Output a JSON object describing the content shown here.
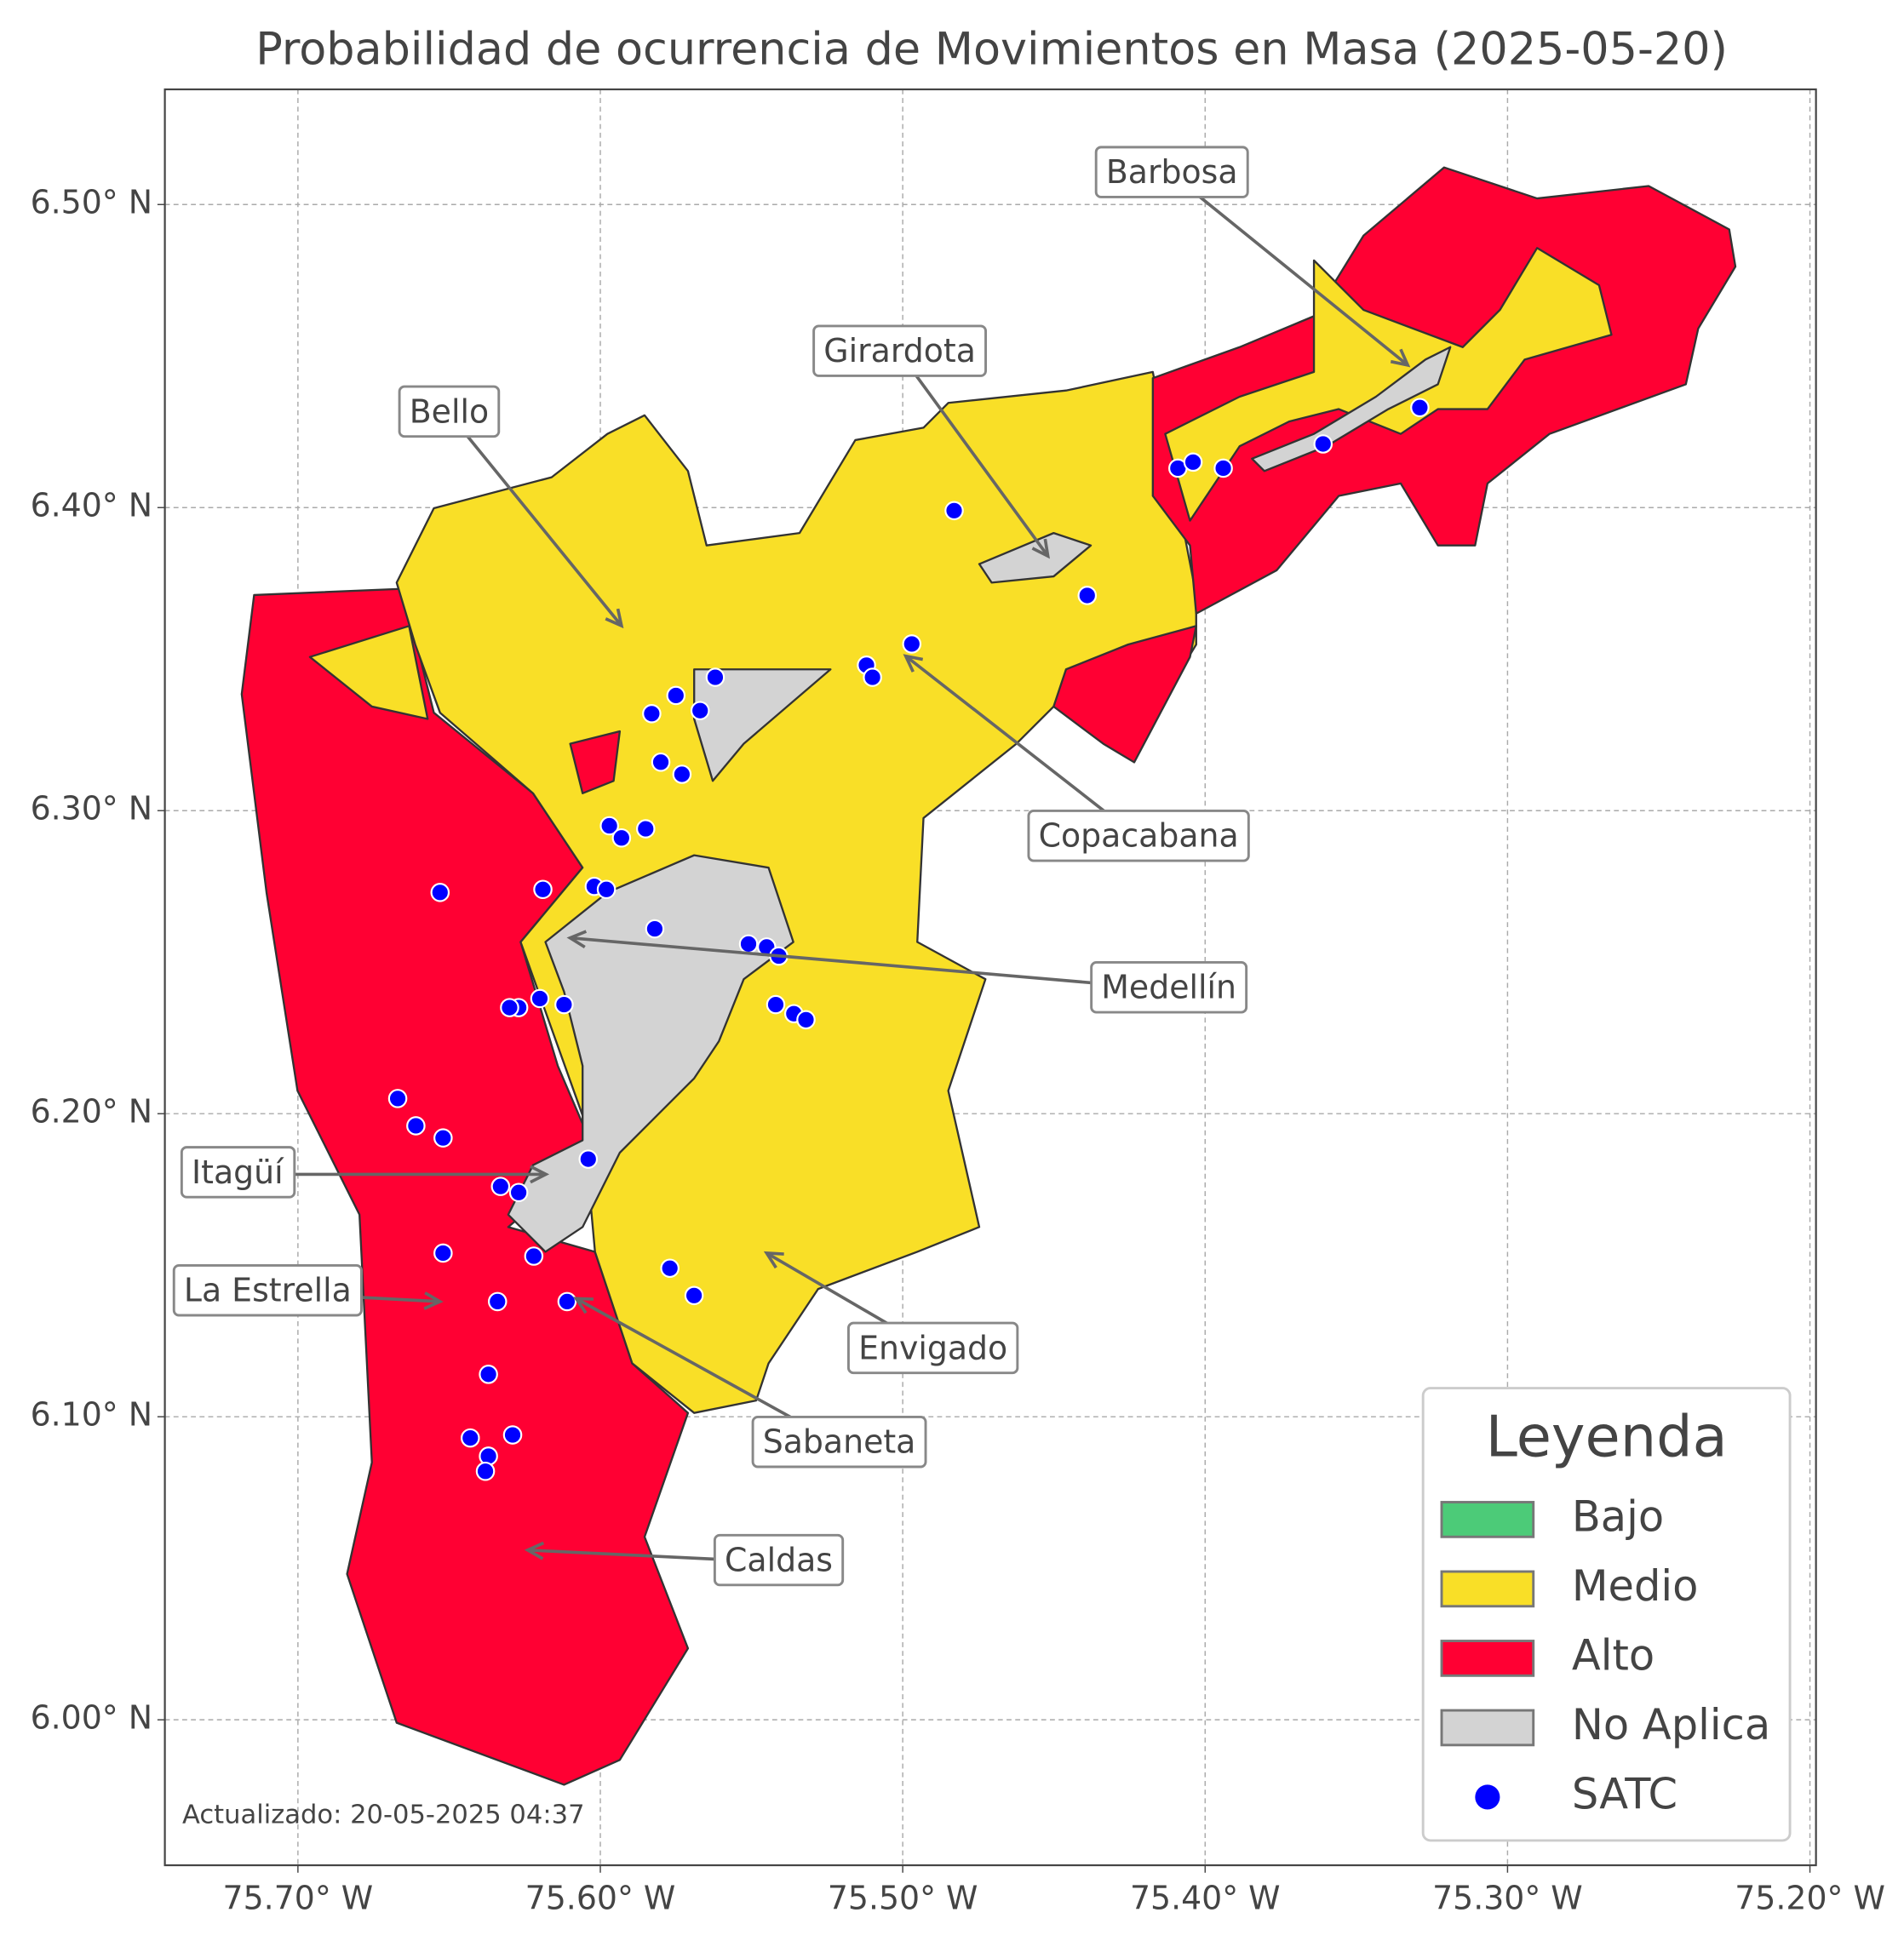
{
  "chart_data": {
    "type": "map",
    "title": "Probabilidad de ocurrencia de Movimientos en Masa (2025-05-20)",
    "footnote": "Actualizado: 20-05-2025 04:37",
    "xlim": [
      -75.744,
      -75.198
    ],
    "ylim": [
      5.952,
      6.538
    ],
    "grid": true,
    "xticks": [
      {
        "value": -75.7,
        "label": "75.70° W"
      },
      {
        "value": -75.6,
        "label": "75.60° W"
      },
      {
        "value": -75.5,
        "label": "75.50° W"
      },
      {
        "value": -75.4,
        "label": "75.40° W"
      },
      {
        "value": -75.3,
        "label": "75.30° W"
      },
      {
        "value": -75.2,
        "label": "75.20° W"
      }
    ],
    "yticks": [
      {
        "value": 6.0,
        "label": "6.00° N"
      },
      {
        "value": 6.1,
        "label": "6.10° N"
      },
      {
        "value": 6.2,
        "label": "6.20° N"
      },
      {
        "value": 6.3,
        "label": "6.30° N"
      },
      {
        "value": 6.4,
        "label": "6.40° N"
      },
      {
        "value": 6.5,
        "label": "6.50° N"
      }
    ],
    "legend_title": "Leyenda",
    "legend": "lower right",
    "risk_levels": [
      {
        "name": "Bajo",
        "color": "#4ccb78"
      },
      {
        "name": "Medio",
        "color": "#f9df27"
      },
      {
        "name": "Alto",
        "color": "#ff0033"
      },
      {
        "name": "No Aplica",
        "color": "#d3d3d3"
      }
    ],
    "series": [
      {
        "name": "SATC",
        "color": "#0000ff",
        "x": [
          -75.483,
          -75.439,
          -75.497,
          -75.512,
          -75.51,
          -75.409,
          -75.404,
          -75.394,
          -75.361,
          -75.329,
          -75.575,
          -75.562,
          -75.583,
          -75.567,
          -75.58,
          -75.573,
          -75.597,
          -75.593,
          -75.585,
          -75.602,
          -75.598,
          -75.619,
          -75.653,
          -75.582,
          -75.551,
          -75.545,
          -75.541,
          -75.542,
          -75.536,
          -75.532,
          -75.612,
          -75.62,
          -75.627,
          -75.63,
          -75.667,
          -75.661,
          -75.652,
          -75.604,
          -75.633,
          -75.627,
          -75.652,
          -75.622,
          -75.577,
          -75.569,
          -75.634,
          -75.611,
          -75.637,
          -75.643,
          -75.629,
          -75.637,
          -75.638
        ],
        "y": [
          6.399,
          6.371,
          6.355,
          6.348,
          6.344,
          6.413,
          6.415,
          6.413,
          6.421,
          6.433,
          6.338,
          6.344,
          6.332,
          6.333,
          6.316,
          6.312,
          6.295,
          6.291,
          6.294,
          6.275,
          6.274,
          6.274,
          6.273,
          6.261,
          6.256,
          6.255,
          6.252,
          6.236,
          6.233,
          6.231,
          6.236,
          6.238,
          6.235,
          6.235,
          6.205,
          6.196,
          6.192,
          6.185,
          6.176,
          6.174,
          6.154,
          6.153,
          6.149,
          6.14,
          6.138,
          6.138,
          6.114,
          6.093,
          6.094,
          6.087,
          6.082
        ]
      }
    ],
    "annotations": [
      {
        "text": "Barbosa",
        "xy": [
          -75.333,
          6.447
        ],
        "xytext": [
          -75.411,
          6.51
        ]
      },
      {
        "text": "Girardota",
        "xy": [
          -75.452,
          6.384
        ],
        "xytext": [
          -75.501,
          6.451
        ]
      },
      {
        "text": "Bello",
        "xy": [
          -75.593,
          6.361
        ],
        "xytext": [
          -75.65,
          6.431
        ]
      },
      {
        "text": "Copacabana",
        "xy": [
          -75.499,
          6.351
        ],
        "xytext": [
          -75.422,
          6.291
        ]
      },
      {
        "text": "Medellín",
        "xy": [
          -75.61,
          6.258
        ],
        "xytext": [
          -75.412,
          6.241
        ]
      },
      {
        "text": "Itagüí",
        "xy": [
          -75.618,
          6.18
        ],
        "xytext": [
          -75.72,
          6.18
        ]
      },
      {
        "text": "La Estrella",
        "xy": [
          -75.653,
          6.138
        ],
        "xytext": [
          -75.71,
          6.141
        ]
      },
      {
        "text": "Envigado",
        "xy": [
          -75.545,
          6.154
        ],
        "xytext": [
          -75.49,
          6.122
        ]
      },
      {
        "text": "Sabaneta",
        "xy": [
          -75.608,
          6.139
        ],
        "xytext": [
          -75.521,
          6.091
        ]
      },
      {
        "text": "Caldas",
        "xy": [
          -75.624,
          6.056
        ],
        "xytext": [
          -75.541,
          6.052
        ]
      }
    ]
  }
}
